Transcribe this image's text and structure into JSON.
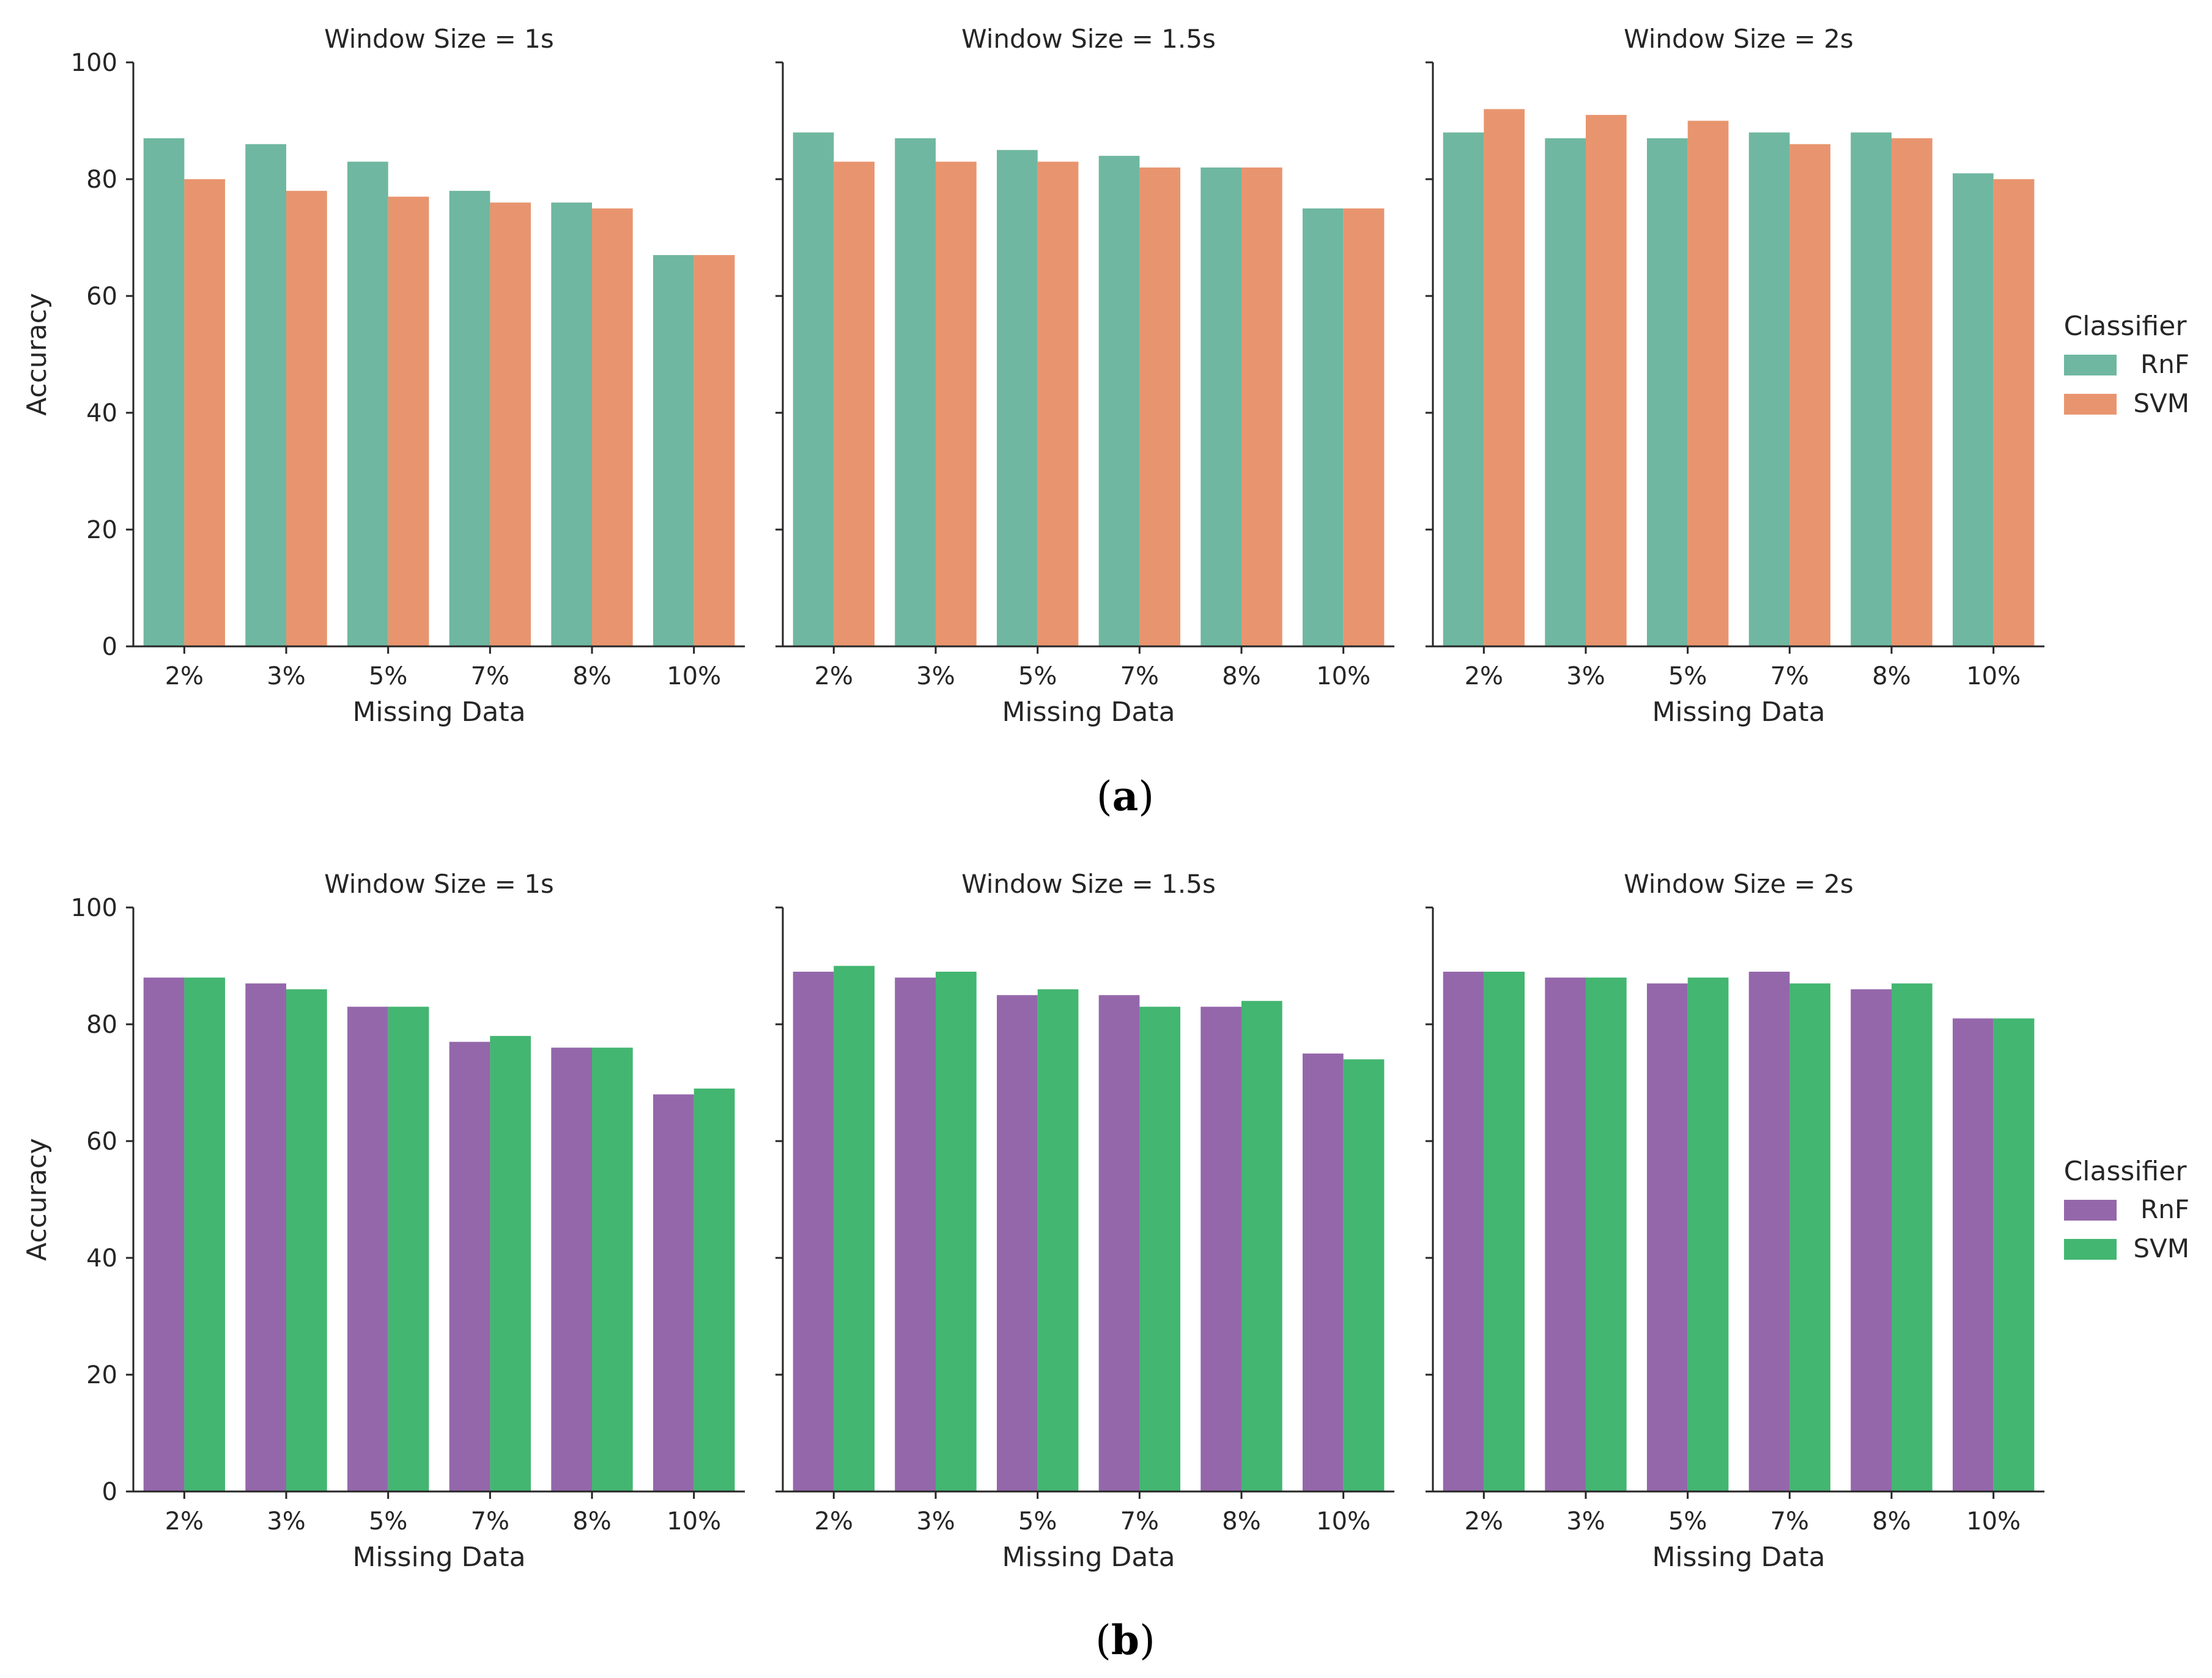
{
  "chart_data": [
    {
      "type": "bar",
      "caption_letter": "a",
      "ylabel": "Accuracy",
      "xlabel": "Missing Data",
      "ylim": [
        0,
        100
      ],
      "yticks": [
        0,
        20,
        40,
        60,
        80,
        100
      ],
      "categories": [
        "2%",
        "3%",
        "5%",
        "7%",
        "8%",
        "10%"
      ],
      "legend": {
        "title": "Classifier",
        "position": "right",
        "entries": [
          {
            "name": "RnF",
            "color": "#6fb7a0"
          },
          {
            "name": "SVM",
            "color": "#e8956f"
          }
        ]
      },
      "panels": [
        {
          "title": "Window Size = 1s",
          "series": [
            {
              "name": "RnF",
              "values": [
                87,
                86,
                83,
                78,
                76,
                67
              ]
            },
            {
              "name": "SVM",
              "values": [
                80,
                78,
                77,
                76,
                75,
                67
              ]
            }
          ]
        },
        {
          "title": "Window Size = 1.5s",
          "series": [
            {
              "name": "RnF",
              "values": [
                88,
                87,
                85,
                84,
                82,
                75
              ]
            },
            {
              "name": "SVM",
              "values": [
                83,
                83,
                83,
                82,
                82,
                75
              ]
            }
          ]
        },
        {
          "title": "Window Size = 2s",
          "series": [
            {
              "name": "RnF",
              "values": [
                88,
                87,
                87,
                88,
                88,
                81
              ]
            },
            {
              "name": "SVM",
              "values": [
                92,
                91,
                90,
                86,
                87,
                80
              ]
            }
          ]
        }
      ]
    },
    {
      "type": "bar",
      "caption_letter": "b",
      "ylabel": "Accuracy",
      "xlabel": "Missing Data",
      "ylim": [
        0,
        100
      ],
      "yticks": [
        0,
        20,
        40,
        60,
        80,
        100
      ],
      "categories": [
        "2%",
        "3%",
        "5%",
        "7%",
        "8%",
        "10%"
      ],
      "legend": {
        "title": "Classifier",
        "position": "right",
        "entries": [
          {
            "name": "RnF",
            "color": "#9467ab"
          },
          {
            "name": "SVM",
            "color": "#43b671"
          }
        ]
      },
      "panels": [
        {
          "title": "Window Size = 1s",
          "series": [
            {
              "name": "RnF",
              "values": [
                88,
                87,
                83,
                77,
                76,
                68
              ]
            },
            {
              "name": "SVM",
              "values": [
                88,
                86,
                83,
                78,
                76,
                69
              ]
            }
          ]
        },
        {
          "title": "Window Size = 1.5s",
          "series": [
            {
              "name": "RnF",
              "values": [
                89,
                88,
                85,
                85,
                83,
                75
              ]
            },
            {
              "name": "SVM",
              "values": [
                90,
                89,
                86,
                83,
                84,
                74
              ]
            }
          ]
        },
        {
          "title": "Window Size = 2s",
          "series": [
            {
              "name": "RnF",
              "values": [
                89,
                88,
                87,
                89,
                86,
                81
              ]
            },
            {
              "name": "SVM",
              "values": [
                89,
                88,
                88,
                87,
                87,
                81
              ]
            }
          ]
        }
      ]
    }
  ]
}
